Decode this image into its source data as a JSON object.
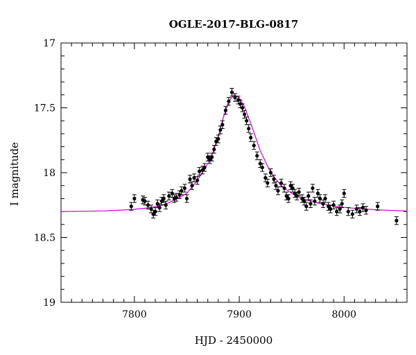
{
  "chart_data": {
    "type": "scatter",
    "title": "OGLE-2017-BLG-0817",
    "xlabel": "HJD - 2450000",
    "ylabel": "I magnitude",
    "xlim": [
      7730,
      8060
    ],
    "ylim": [
      19.0,
      17.0
    ],
    "y_inverted": true,
    "x_ticks": [
      7800,
      7900,
      8000
    ],
    "x_tick_labels": [
      "7800",
      "7900",
      "8000"
    ],
    "y_ticks": [
      17.0,
      17.5,
      18.0,
      18.5,
      19.0
    ],
    "y_tick_labels": [
      "17",
      "17.5",
      "18",
      "18.5",
      "19"
    ],
    "grid": false,
    "model_color": "#cc00cc",
    "point_color": "#000000",
    "model": {
      "name": "",
      "x": [
        7730,
        7750,
        7770,
        7790,
        7800,
        7810,
        7820,
        7830,
        7840,
        7850,
        7860,
        7870,
        7875,
        7880,
        7885,
        7890,
        7895,
        7900,
        7905,
        7910,
        7915,
        7920,
        7930,
        7940,
        7950,
        7960,
        7970,
        7980,
        7990,
        8000,
        8010,
        8020,
        8030,
        8040,
        8060
      ],
      "y": [
        18.3,
        18.298,
        18.295,
        18.288,
        18.283,
        18.275,
        18.262,
        18.242,
        18.205,
        18.16,
        18.06,
        17.93,
        17.84,
        17.72,
        17.57,
        17.45,
        17.4,
        17.42,
        17.49,
        17.6,
        17.71,
        17.83,
        18.0,
        18.1,
        18.16,
        18.2,
        18.225,
        18.243,
        18.257,
        18.268,
        18.275,
        18.281,
        18.286,
        18.29,
        18.296
      ]
    },
    "series": [
      {
        "name": "",
        "x": [
          7797,
          7800,
          7808,
          7810,
          7813,
          7816,
          7818,
          7820,
          7822,
          7824,
          7826,
          7828,
          7830,
          7833,
          7836,
          7838,
          7840,
          7843,
          7845,
          7848,
          7850,
          7853,
          7855,
          7857,
          7860,
          7862,
          7865,
          7867,
          7870,
          7872,
          7874,
          7876,
          7878,
          7880,
          7882,
          7884,
          7887,
          7890,
          7893,
          7896,
          7899,
          7901,
          7903,
          7905,
          7907,
          7909,
          7911,
          7914,
          7917,
          7920,
          7922,
          7925,
          7927,
          7930,
          7933,
          7935,
          7937,
          7940,
          7943,
          7945,
          7947,
          7949,
          7951,
          7953,
          7955,
          7957,
          7960,
          7962,
          7964,
          7966,
          7968,
          7970,
          7972,
          7975,
          7977,
          7980,
          7982,
          7985,
          7987,
          7990,
          7993,
          7996,
          7998,
          8000,
          8004,
          8008,
          8012,
          8015,
          8018,
          8021,
          8032,
          8050
        ],
        "y": [
          18.26,
          18.2,
          18.21,
          18.22,
          18.25,
          18.28,
          18.32,
          18.3,
          18.24,
          18.27,
          18.22,
          18.2,
          18.25,
          18.18,
          18.16,
          18.2,
          18.19,
          18.17,
          18.14,
          18.12,
          18.2,
          18.05,
          18.1,
          18.04,
          18.06,
          17.99,
          17.98,
          17.96,
          17.88,
          17.9,
          17.88,
          17.82,
          17.76,
          17.74,
          17.67,
          17.63,
          17.52,
          17.45,
          17.38,
          17.42,
          17.44,
          17.47,
          17.5,
          17.55,
          17.6,
          17.66,
          17.73,
          17.79,
          17.87,
          17.93,
          17.96,
          18.04,
          18.08,
          18.0,
          18.05,
          18.1,
          18.14,
          18.08,
          18.12,
          18.18,
          18.2,
          18.1,
          18.12,
          18.16,
          18.18,
          18.15,
          18.2,
          18.22,
          18.26,
          18.18,
          18.24,
          18.12,
          18.22,
          18.16,
          18.2,
          18.24,
          18.2,
          18.26,
          18.28,
          18.25,
          18.3,
          18.28,
          18.24,
          18.16,
          18.3,
          18.32,
          18.28,
          18.3,
          18.27,
          18.29,
          18.26,
          18.37
        ],
        "err": [
          0.03,
          0.03,
          0.03,
          0.03,
          0.03,
          0.03,
          0.03,
          0.03,
          0.03,
          0.03,
          0.03,
          0.03,
          0.03,
          0.03,
          0.03,
          0.03,
          0.03,
          0.03,
          0.03,
          0.03,
          0.03,
          0.03,
          0.03,
          0.03,
          0.03,
          0.03,
          0.03,
          0.03,
          0.03,
          0.03,
          0.03,
          0.03,
          0.03,
          0.03,
          0.03,
          0.03,
          0.03,
          0.03,
          0.03,
          0.03,
          0.03,
          0.03,
          0.03,
          0.03,
          0.03,
          0.03,
          0.03,
          0.03,
          0.03,
          0.03,
          0.03,
          0.03,
          0.03,
          0.03,
          0.03,
          0.03,
          0.03,
          0.03,
          0.03,
          0.03,
          0.03,
          0.03,
          0.03,
          0.03,
          0.03,
          0.03,
          0.03,
          0.03,
          0.03,
          0.03,
          0.03,
          0.03,
          0.03,
          0.03,
          0.03,
          0.03,
          0.03,
          0.03,
          0.03,
          0.03,
          0.03,
          0.03,
          0.03,
          0.03,
          0.03,
          0.03,
          0.03,
          0.03,
          0.03,
          0.03,
          0.03,
          0.03
        ]
      }
    ]
  }
}
